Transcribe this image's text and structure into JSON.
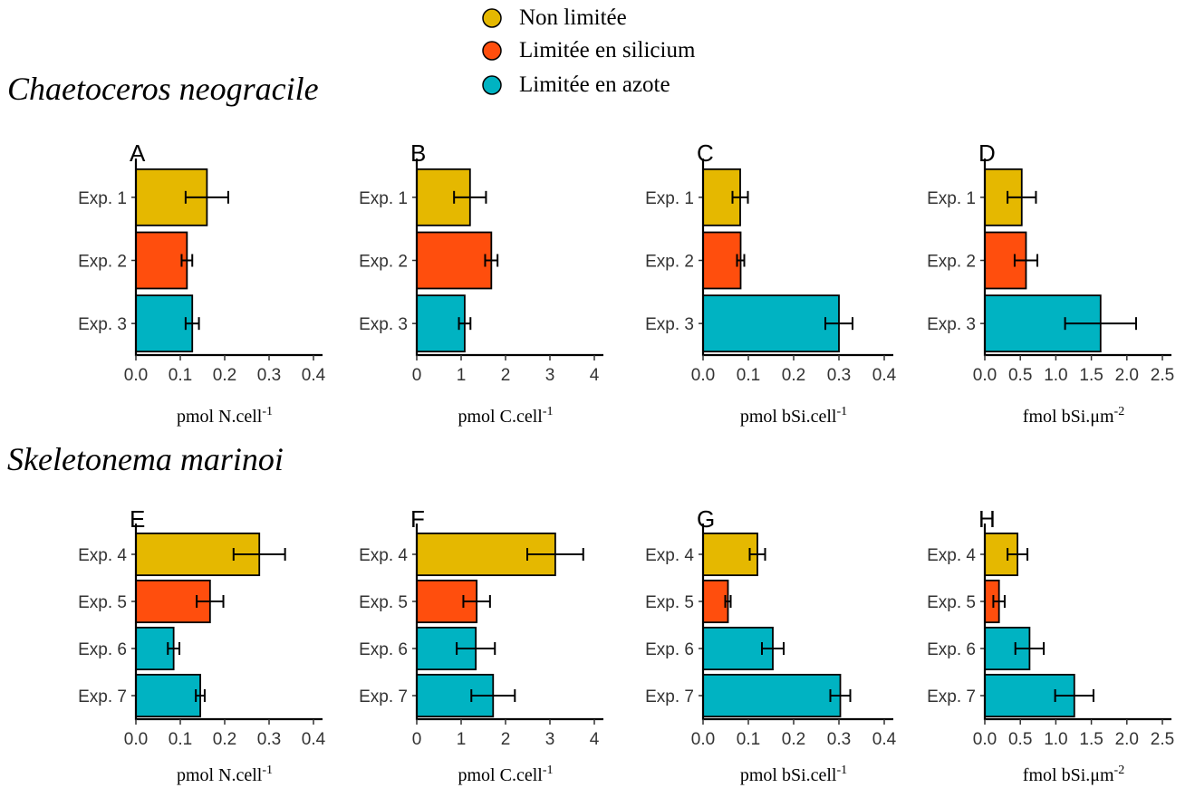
{
  "legend": {
    "position": "top-center",
    "items": [
      {
        "label": "Non limitée",
        "color": "#E5B800"
      },
      {
        "label": "Limitée en silicium",
        "color": "#FF4E0D"
      },
      {
        "label": "Limitée en azote",
        "color": "#00B3C2"
      }
    ]
  },
  "sections": [
    {
      "title": "Chaetoceros neogracile"
    },
    {
      "title": "Skeletonema marinoi"
    }
  ],
  "chart_data": [
    {
      "type": "bar",
      "orientation": "horizontal",
      "panel": "A",
      "categories": [
        "Exp. 1",
        "Exp. 2",
        "Exp. 3"
      ],
      "values": [
        0.16,
        0.115,
        0.127
      ],
      "errors": [
        0.048,
        0.012,
        0.015
      ],
      "colors": [
        "#E5B800",
        "#FF4E0D",
        "#00B3C2"
      ],
      "xlabel": "pmol N.cell",
      "xlabel_sup": "-1",
      "xlim": [
        0,
        0.4
      ],
      "ticks": [
        0,
        0.1,
        0.2,
        0.3,
        0.4
      ],
      "tick_labels": [
        "0.0",
        "0.1",
        "0.2",
        "0.3",
        "0.4"
      ],
      "grid": false
    },
    {
      "type": "bar",
      "orientation": "horizontal",
      "panel": "B",
      "categories": [
        "Exp. 1",
        "Exp. 2",
        "Exp. 3"
      ],
      "values": [
        1.2,
        1.68,
        1.08
      ],
      "errors": [
        0.36,
        0.14,
        0.13
      ],
      "colors": [
        "#E5B800",
        "#FF4E0D",
        "#00B3C2"
      ],
      "xlabel": "pmol C.cell",
      "xlabel_sup": "-1",
      "xlim": [
        0,
        4
      ],
      "ticks": [
        0,
        1,
        2,
        3,
        4
      ],
      "tick_labels": [
        "0",
        "1",
        "2",
        "3",
        "4"
      ],
      "grid": false
    },
    {
      "type": "bar",
      "orientation": "horizontal",
      "panel": "C",
      "categories": [
        "Exp. 1",
        "Exp. 2",
        "Exp. 3"
      ],
      "values": [
        0.082,
        0.083,
        0.3
      ],
      "errors": [
        0.017,
        0.008,
        0.03
      ],
      "colors": [
        "#E5B800",
        "#FF4E0D",
        "#00B3C2"
      ],
      "xlabel": "pmol bSi.cell",
      "xlabel_sup": "-1",
      "xlim": [
        0,
        0.4
      ],
      "ticks": [
        0,
        0.1,
        0.2,
        0.3,
        0.4
      ],
      "tick_labels": [
        "0.0",
        "0.1",
        "0.2",
        "0.3",
        "0.4"
      ],
      "grid": false
    },
    {
      "type": "bar",
      "orientation": "horizontal",
      "panel": "D",
      "categories": [
        "Exp. 1",
        "Exp. 2",
        "Exp. 3"
      ],
      "values": [
        0.52,
        0.58,
        1.63
      ],
      "errors": [
        0.2,
        0.16,
        0.5
      ],
      "colors": [
        "#E5B800",
        "#FF4E0D",
        "#00B3C2"
      ],
      "xlabel": "fmol bSi.μm",
      "xlabel_sup": "-2",
      "xlim": [
        0,
        2.5
      ],
      "ticks": [
        0,
        0.5,
        1,
        1.5,
        2,
        2.5
      ],
      "tick_labels": [
        "0.0",
        "0.5",
        "1.0",
        "1.5",
        "2.0",
        "2.5"
      ],
      "grid": false
    },
    {
      "type": "bar",
      "orientation": "horizontal",
      "panel": "E",
      "categories": [
        "Exp. 4",
        "Exp. 5",
        "Exp. 6",
        "Exp. 7"
      ],
      "values": [
        0.278,
        0.167,
        0.085,
        0.145
      ],
      "errors": [
        0.058,
        0.03,
        0.013,
        0.01
      ],
      "colors": [
        "#E5B800",
        "#FF4E0D",
        "#00B3C2",
        "#00B3C2"
      ],
      "xlabel": "pmol N.cell",
      "xlabel_sup": "-1",
      "xlim": [
        0,
        0.4
      ],
      "ticks": [
        0,
        0.1,
        0.2,
        0.3,
        0.4
      ],
      "tick_labels": [
        "0.0",
        "0.1",
        "0.2",
        "0.3",
        "0.4"
      ],
      "grid": false
    },
    {
      "type": "bar",
      "orientation": "horizontal",
      "panel": "F",
      "categories": [
        "Exp. 4",
        "Exp. 5",
        "Exp. 6",
        "Exp. 7"
      ],
      "values": [
        3.12,
        1.35,
        1.33,
        1.72
      ],
      "errors": [
        0.63,
        0.3,
        0.43,
        0.49
      ],
      "colors": [
        "#E5B800",
        "#FF4E0D",
        "#00B3C2",
        "#00B3C2"
      ],
      "xlabel": "pmol C.cell",
      "xlabel_sup": "-1",
      "xlim": [
        0,
        4
      ],
      "ticks": [
        0,
        1,
        2,
        3,
        4
      ],
      "tick_labels": [
        "0",
        "1",
        "2",
        "3",
        "4"
      ],
      "grid": false
    },
    {
      "type": "bar",
      "orientation": "horizontal",
      "panel": "G",
      "categories": [
        "Exp. 4",
        "Exp. 5",
        "Exp. 6",
        "Exp. 7"
      ],
      "values": [
        0.12,
        0.055,
        0.154,
        0.303
      ],
      "errors": [
        0.017,
        0.006,
        0.024,
        0.022
      ],
      "colors": [
        "#E5B800",
        "#FF4E0D",
        "#00B3C2",
        "#00B3C2"
      ],
      "xlabel": "pmol bSi.cell",
      "xlabel_sup": "-1",
      "xlim": [
        0,
        0.4
      ],
      "ticks": [
        0,
        0.1,
        0.2,
        0.3,
        0.4
      ],
      "tick_labels": [
        "0.0",
        "0.1",
        "0.2",
        "0.3",
        "0.4"
      ],
      "grid": false
    },
    {
      "type": "bar",
      "orientation": "horizontal",
      "panel": "H",
      "categories": [
        "Exp. 4",
        "Exp. 5",
        "Exp. 6",
        "Exp. 7"
      ],
      "values": [
        0.46,
        0.2,
        0.63,
        1.26
      ],
      "errors": [
        0.14,
        0.08,
        0.2,
        0.27
      ],
      "colors": [
        "#E5B800",
        "#FF4E0D",
        "#00B3C2",
        "#00B3C2"
      ],
      "xlabel": "fmol bSi.μm",
      "xlabel_sup": "-2",
      "xlim": [
        0,
        2.5
      ],
      "ticks": [
        0,
        0.5,
        1,
        1.5,
        2,
        2.5
      ],
      "tick_labels": [
        "0.0",
        "0.5",
        "1.0",
        "1.5",
        "2.0",
        "2.5"
      ],
      "grid": false
    }
  ]
}
